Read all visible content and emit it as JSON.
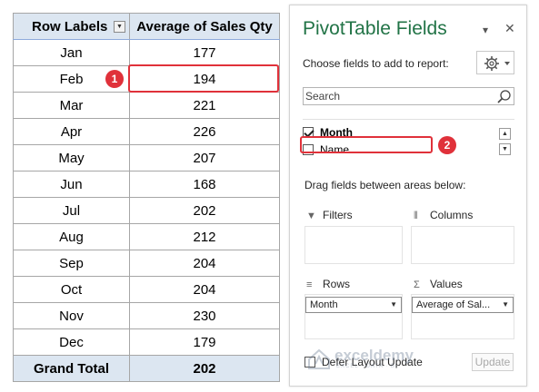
{
  "pivot": {
    "header": {
      "row_labels": "Row Labels",
      "value_col": "Average of Sales Qty"
    },
    "rows": [
      {
        "month": "Jan",
        "value": "177"
      },
      {
        "month": "Feb",
        "value": "194"
      },
      {
        "month": "Mar",
        "value": "221"
      },
      {
        "month": "Apr",
        "value": "226"
      },
      {
        "month": "May",
        "value": "207"
      },
      {
        "month": "Jun",
        "value": "168"
      },
      {
        "month": "Jul",
        "value": "202"
      },
      {
        "month": "Aug",
        "value": "212"
      },
      {
        "month": "Sep",
        "value": "204"
      },
      {
        "month": "Oct",
        "value": "204"
      },
      {
        "month": "Nov",
        "value": "230"
      },
      {
        "month": "Dec",
        "value": "179"
      }
    ],
    "total": {
      "label": "Grand Total",
      "value": "202"
    }
  },
  "markers": {
    "m1": "1",
    "m2": "2"
  },
  "fields_pane": {
    "title": "PivotTable Fields",
    "subtitle": "Choose fields to add to report:",
    "search_placeholder": "Search",
    "fields": [
      {
        "label": "Month",
        "checked": true
      },
      {
        "label": "Name",
        "checked": false
      }
    ],
    "drag_label": "Drag fields between areas below:",
    "areas": {
      "filters": "Filters",
      "columns": "Columns",
      "rows": "Rows",
      "values": "Values"
    },
    "rows_value": "Month",
    "values_value": "Average of Sal...",
    "defer_label": "Defer Layout Update",
    "update_label": "Update"
  },
  "watermark": {
    "name": "exceldemy",
    "tagline": "EXCEL · DATA · BI"
  },
  "colors": {
    "accent": "#217346",
    "highlight": "#e0313a",
    "header_fill": "#dce6f1"
  }
}
